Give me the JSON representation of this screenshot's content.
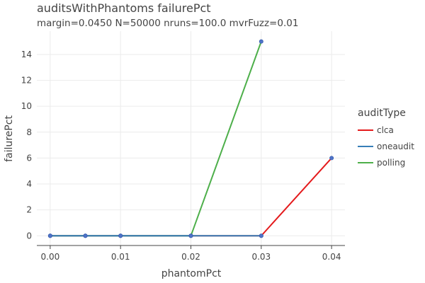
{
  "chart_data": {
    "type": "line",
    "title": "auditsWithPhantoms failurePct",
    "subtitle": "margin=0.0450 N=50000 nruns=100.0 mvrFuzz=0.01",
    "xlabel": "phantomPct",
    "ylabel": "failurePct",
    "xlim": [
      -0.0019,
      0.0419
    ],
    "ylim": [
      -0.75,
      15.8
    ],
    "x_ticks": [
      "0.00",
      "0.01",
      "0.02",
      "0.03",
      "0.04"
    ],
    "y_ticks": [
      "0",
      "2",
      "4",
      "6",
      "8",
      "10",
      "12",
      "14"
    ],
    "x_tick_values": [
      0,
      0.01,
      0.02,
      0.03,
      0.04
    ],
    "y_tick_values": [
      0,
      2,
      4,
      6,
      8,
      10,
      12,
      14
    ],
    "grid": true,
    "legend": {
      "title": "auditType",
      "position": "right"
    },
    "series": [
      {
        "name": "clca",
        "color": "#e41a1c",
        "x": [
          0,
          0.005,
          0.01,
          0.02,
          0.03,
          0.04
        ],
        "y": [
          0,
          0,
          0,
          0,
          0,
          6
        ]
      },
      {
        "name": "polling",
        "color": "#4daf4a",
        "x": [
          0,
          0.005,
          0.01,
          0.02,
          0.03
        ],
        "y": [
          0,
          0,
          0,
          0,
          15
        ]
      },
      {
        "name": "oneaudit",
        "color": "#377eb8",
        "x": [
          0,
          0.005,
          0.01,
          0.02,
          0.03
        ],
        "y": [
          0,
          0,
          0,
          0,
          0
        ]
      }
    ],
    "legend_order": [
      "clca",
      "oneaudit",
      "polling"
    ],
    "marker_color": "#4f74c9"
  }
}
